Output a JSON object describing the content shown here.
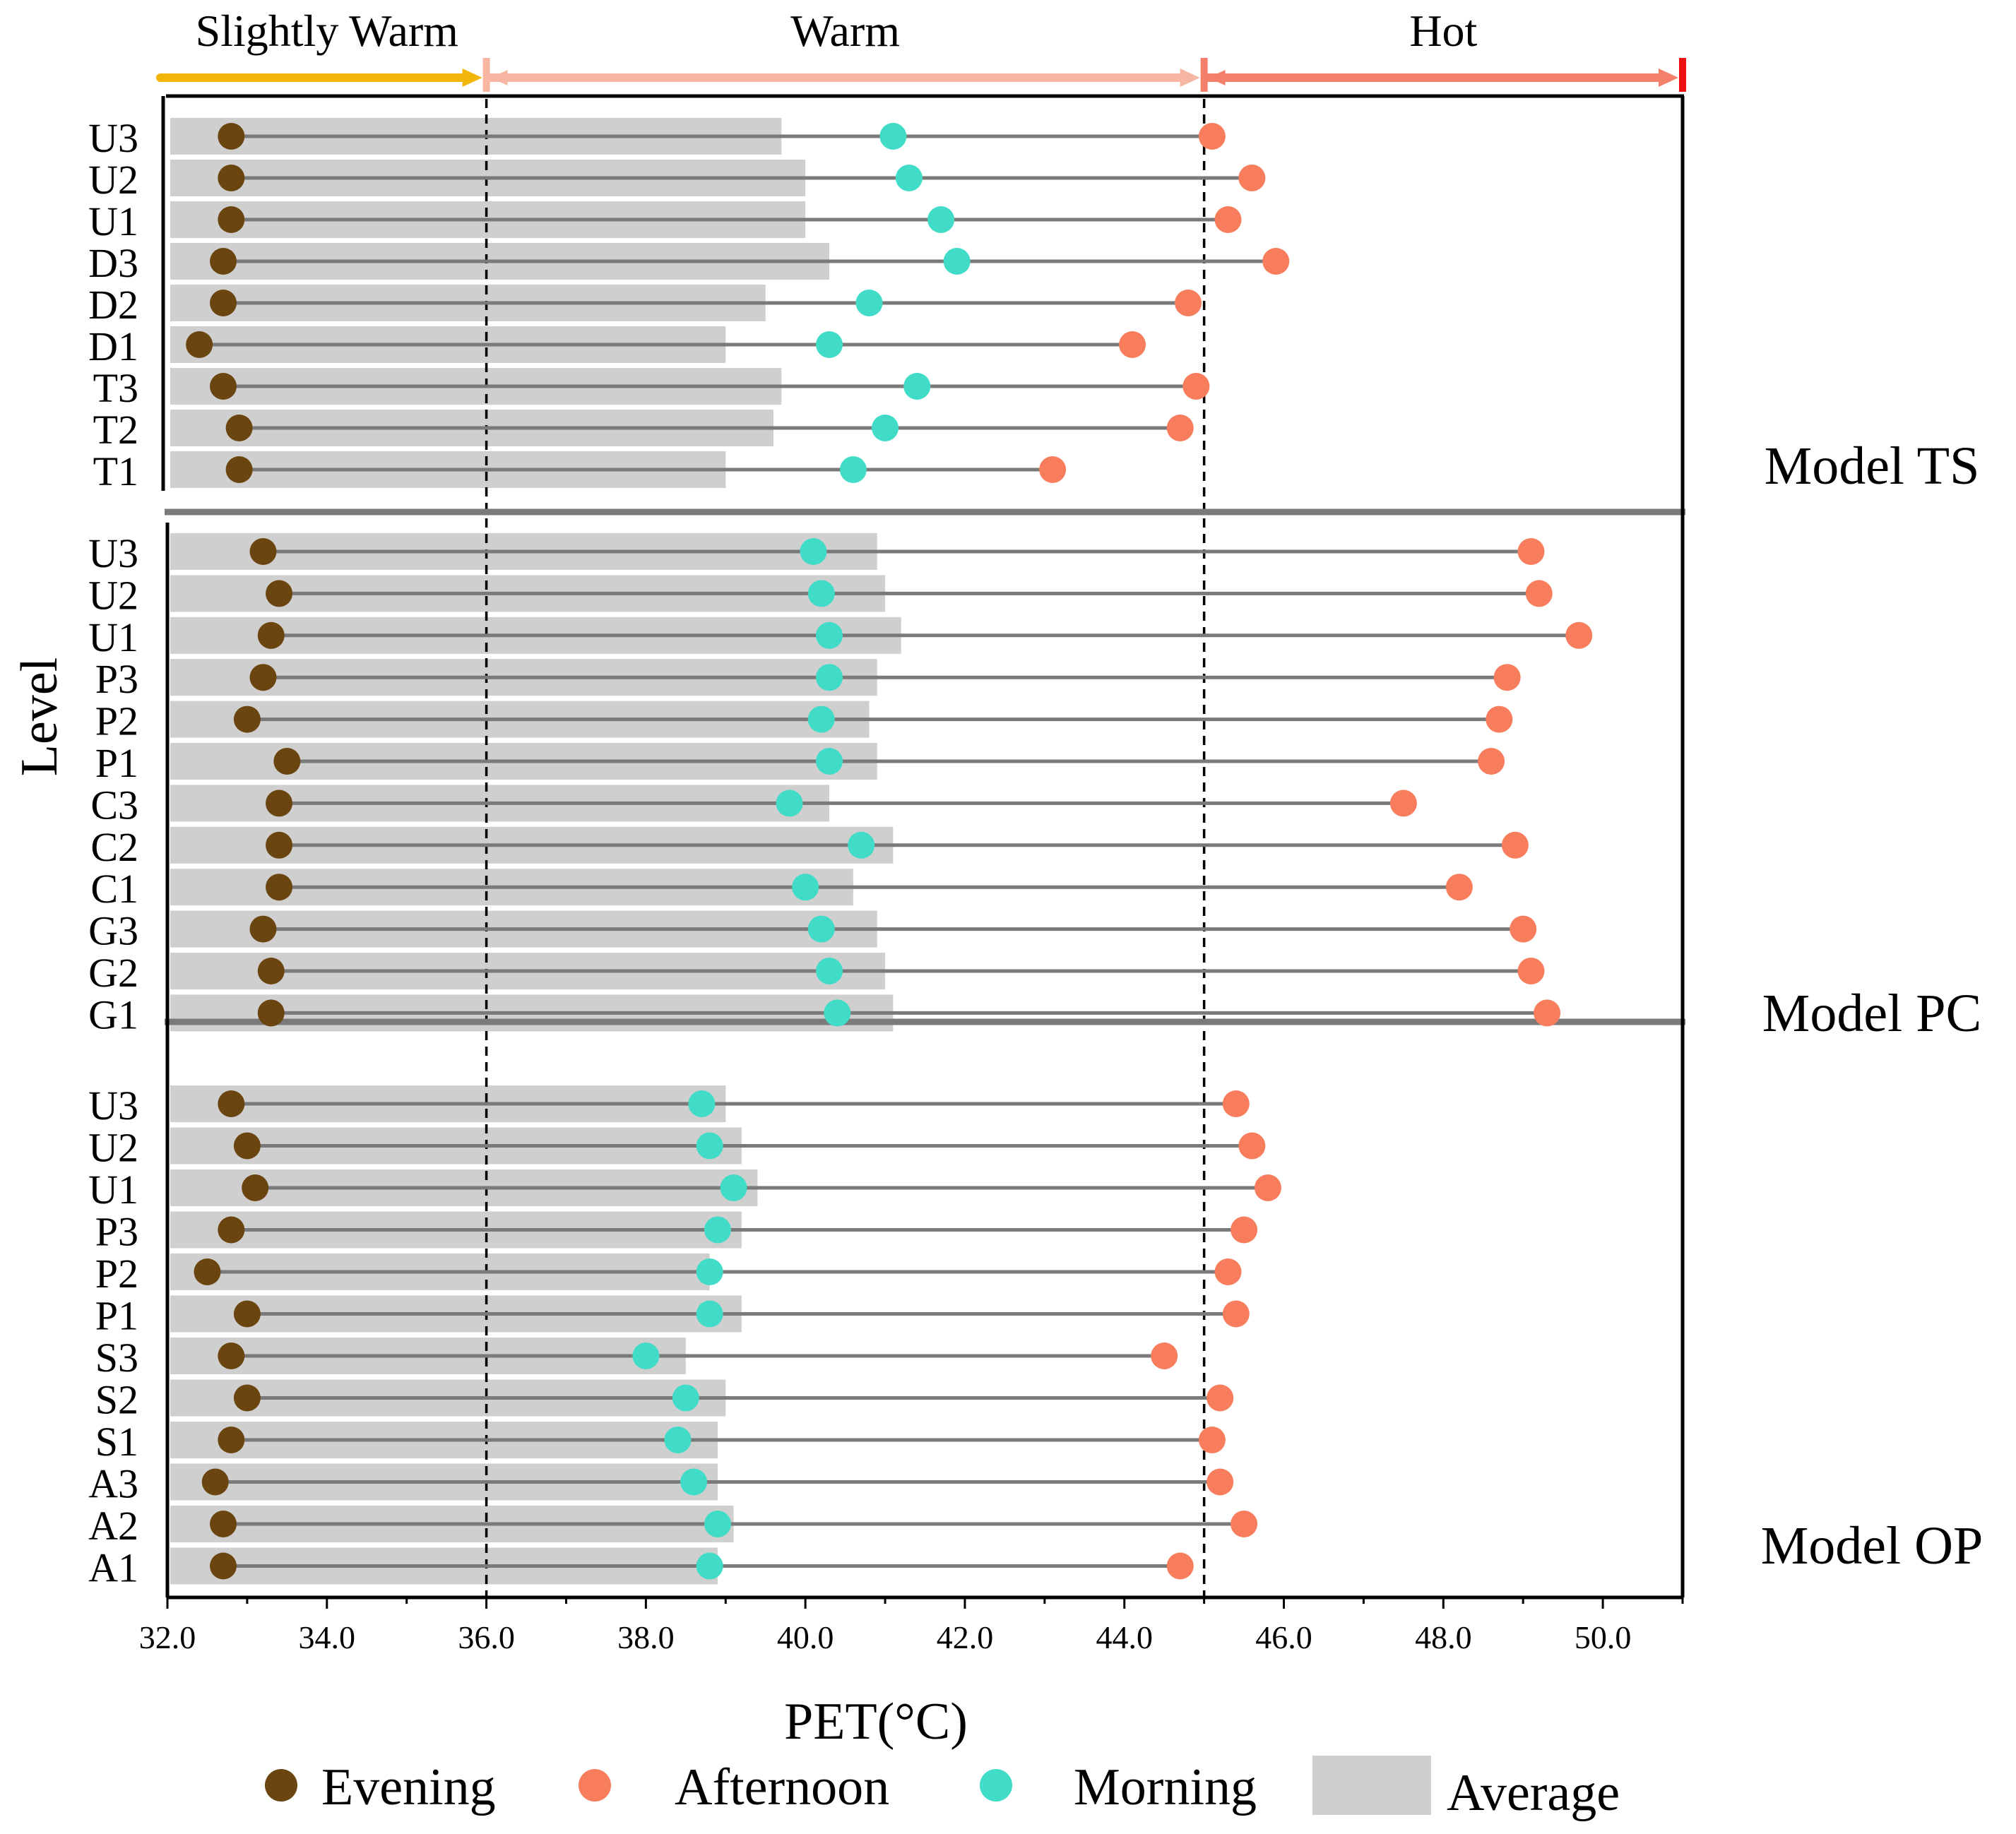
{
  "chart_data": {
    "type": "dumbbell",
    "xlabel": "PET(°C)",
    "ylabel": "Level",
    "xlim": [
      32.0,
      51.0
    ],
    "xticks": [
      "32.0",
      "34.0",
      "36.0",
      "38.0",
      "40.0",
      "42.0",
      "44.0",
      "46.0",
      "48.0",
      "50.0"
    ],
    "thresholds": [
      36.0,
      45.0
    ],
    "zones": [
      {
        "label": "Slightly Warm",
        "from": 32.0,
        "to": 36.0,
        "color": "#f2b50a"
      },
      {
        "label": "Warm",
        "from": 36.0,
        "to": 45.0,
        "color": "#f7b6a2"
      },
      {
        "label": "Hot",
        "from": 45.0,
        "to": 51.0,
        "color": "#f47f6b"
      }
    ],
    "colors": {
      "evening": "#6b4510",
      "afternoon": "#f77d5c",
      "morning": "#40dcc8",
      "average": "#cfcfcf",
      "line": "#7a7a7a",
      "hot_end": "#ee1111"
    },
    "legend": {
      "evening": "Evening",
      "afternoon": "Afternoon",
      "morning": "Morning",
      "average": "Average"
    },
    "panels": [
      {
        "model": "Model TS",
        "rows": [
          {
            "level": "U3",
            "evening": 32.8,
            "morning": 41.1,
            "afternoon": 45.1,
            "average": 39.7
          },
          {
            "level": "U2",
            "evening": 32.8,
            "morning": 41.3,
            "afternoon": 45.6,
            "average": 40.0
          },
          {
            "level": "U1",
            "evening": 32.8,
            "morning": 41.7,
            "afternoon": 45.3,
            "average": 40.0
          },
          {
            "level": "D3",
            "evening": 32.7,
            "morning": 41.9,
            "afternoon": 45.9,
            "average": 40.3
          },
          {
            "level": "D2",
            "evening": 32.7,
            "morning": 40.8,
            "afternoon": 44.8,
            "average": 39.5
          },
          {
            "level": "D1",
            "evening": 32.4,
            "morning": 40.3,
            "afternoon": 44.1,
            "average": 39.0
          },
          {
            "level": "T3",
            "evening": 32.7,
            "morning": 41.4,
            "afternoon": 44.9,
            "average": 39.7
          },
          {
            "level": "T2",
            "evening": 32.9,
            "morning": 41.0,
            "afternoon": 44.7,
            "average": 39.6
          },
          {
            "level": "T1",
            "evening": 32.9,
            "morning": 40.6,
            "afternoon": 43.1,
            "average": 39.0
          }
        ]
      },
      {
        "model": "Model PC",
        "rows": [
          {
            "level": "U3",
            "evening": 33.2,
            "morning": 40.1,
            "afternoon": 49.1,
            "average": 40.9
          },
          {
            "level": "U2",
            "evening": 33.4,
            "morning": 40.2,
            "afternoon": 49.2,
            "average": 41.0
          },
          {
            "level": "U1",
            "evening": 33.3,
            "morning": 40.3,
            "afternoon": 49.7,
            "average": 41.2
          },
          {
            "level": "P3",
            "evening": 33.2,
            "morning": 40.3,
            "afternoon": 48.8,
            "average": 40.9
          },
          {
            "level": "P2",
            "evening": 33.0,
            "morning": 40.2,
            "afternoon": 48.7,
            "average": 40.8
          },
          {
            "level": "P1",
            "evening": 33.5,
            "morning": 40.3,
            "afternoon": 48.6,
            "average": 40.9
          },
          {
            "level": "C3",
            "evening": 33.4,
            "morning": 39.8,
            "afternoon": 47.5,
            "average": 40.3
          },
          {
            "level": "C2",
            "evening": 33.4,
            "morning": 40.7,
            "afternoon": 48.9,
            "average": 41.1
          },
          {
            "level": "C1",
            "evening": 33.4,
            "morning": 40.0,
            "afternoon": 48.2,
            "average": 40.6
          },
          {
            "level": "G3",
            "evening": 33.2,
            "morning": 40.2,
            "afternoon": 49.0,
            "average": 40.9
          },
          {
            "level": "G2",
            "evening": 33.3,
            "morning": 40.3,
            "afternoon": 49.1,
            "average": 41.0
          },
          {
            "level": "G1",
            "evening": 33.3,
            "morning": 40.4,
            "afternoon": 49.3,
            "average": 41.1
          }
        ]
      },
      {
        "model": "Model OP",
        "rows": [
          {
            "level": "U3",
            "evening": 32.8,
            "morning": 38.7,
            "afternoon": 45.4,
            "average": 39.0
          },
          {
            "level": "U2",
            "evening": 33.0,
            "morning": 38.8,
            "afternoon": 45.6,
            "average": 39.2
          },
          {
            "level": "U1",
            "evening": 33.1,
            "morning": 39.1,
            "afternoon": 45.8,
            "average": 39.4
          },
          {
            "level": "P3",
            "evening": 32.8,
            "morning": 38.9,
            "afternoon": 45.5,
            "average": 39.2
          },
          {
            "level": "P2",
            "evening": 32.5,
            "morning": 38.8,
            "afternoon": 45.3,
            "average": 38.8
          },
          {
            "level": "P1",
            "evening": 33.0,
            "morning": 38.8,
            "afternoon": 45.4,
            "average": 39.2
          },
          {
            "level": "S3",
            "evening": 32.8,
            "morning": 38.0,
            "afternoon": 44.5,
            "average": 38.5
          },
          {
            "level": "S2",
            "evening": 33.0,
            "morning": 38.5,
            "afternoon": 45.2,
            "average": 39.0
          },
          {
            "level": "S1",
            "evening": 32.8,
            "morning": 38.4,
            "afternoon": 45.1,
            "average": 38.9
          },
          {
            "level": "A3",
            "evening": 32.6,
            "morning": 38.6,
            "afternoon": 45.2,
            "average": 38.9
          },
          {
            "level": "A2",
            "evening": 32.7,
            "morning": 38.9,
            "afternoon": 45.5,
            "average": 39.1
          },
          {
            "level": "A1",
            "evening": 32.7,
            "morning": 38.8,
            "afternoon": 44.7,
            "average": 38.9
          }
        ]
      }
    ]
  }
}
